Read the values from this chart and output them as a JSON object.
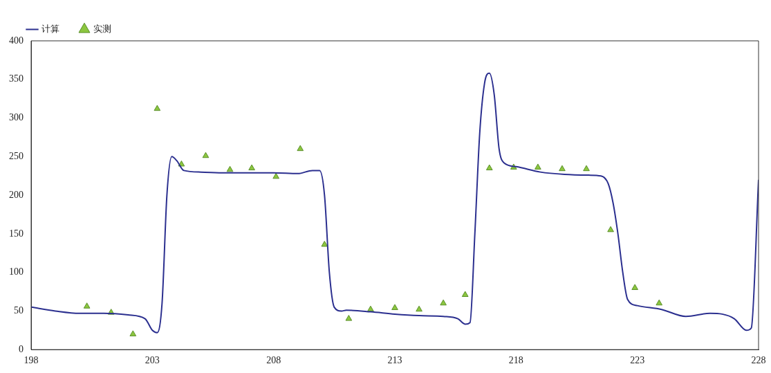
{
  "chart_data": {
    "type": "line",
    "xlim": [
      198,
      228
    ],
    "xticks": [
      198,
      203,
      208,
      213,
      218,
      223,
      228
    ],
    "ylim": [
      0,
      400
    ],
    "yticks": [
      0,
      50,
      100,
      150,
      200,
      250,
      300,
      350,
      400
    ],
    "grid": false,
    "legend": "top left",
    "line_style": "solid",
    "series": [
      {
        "name": "计算",
        "type": "line",
        "color": "#2b2f8f",
        "marker": "none",
        "x": [
          198,
          199,
          200,
          201,
          202,
          202.7,
          203,
          203.2,
          203.4,
          203.6,
          203.8,
          204,
          204.3,
          205,
          206,
          207,
          208,
          209,
          209.6,
          209.9,
          210.1,
          210.3,
          210.5,
          210.8,
          211,
          212,
          213,
          214,
          215,
          215.6,
          215.9,
          216.1,
          216.3,
          216.5,
          216.7,
          216.9,
          217.1,
          217.3,
          217.5,
          218,
          219,
          220,
          221,
          221.5,
          221.8,
          222,
          222.2,
          222.4,
          222.6,
          223,
          224,
          225,
          226,
          226.5,
          227,
          227.5,
          227.7,
          228
        ],
        "values": [
          55,
          50,
          47,
          47,
          45,
          40,
          25,
          22,
          60,
          200,
          250,
          245,
          232,
          230,
          229,
          229,
          229,
          228,
          232,
          232,
          200,
          100,
          55,
          50,
          51,
          49,
          46,
          44,
          43,
          40,
          33,
          35,
          150,
          280,
          345,
          358,
          330,
          260,
          242,
          237,
          230,
          227,
          226,
          225,
          215,
          190,
          150,
          100,
          65,
          57,
          52,
          43,
          47,
          46,
          40,
          25,
          28,
          220
        ]
      },
      {
        "name": "实测",
        "type": "scatter",
        "color": "#8cc63f",
        "marker": "triangle",
        "x": [
          200.3,
          201.3,
          202.2,
          203.2,
          204.2,
          205.2,
          206.2,
          207.1,
          208.1,
          209.1,
          210.1,
          211.1,
          212,
          213,
          214,
          215,
          215.9,
          216.9,
          217.9,
          218.9,
          219.9,
          220.9,
          221.9,
          222.9,
          223.9
        ],
        "values": [
          56,
          48,
          20,
          312,
          240,
          251,
          233,
          235,
          224,
          260,
          136,
          40,
          52,
          54,
          52,
          60,
          71,
          235,
          236,
          236,
          234,
          234,
          155,
          80,
          60
        ]
      }
    ]
  }
}
